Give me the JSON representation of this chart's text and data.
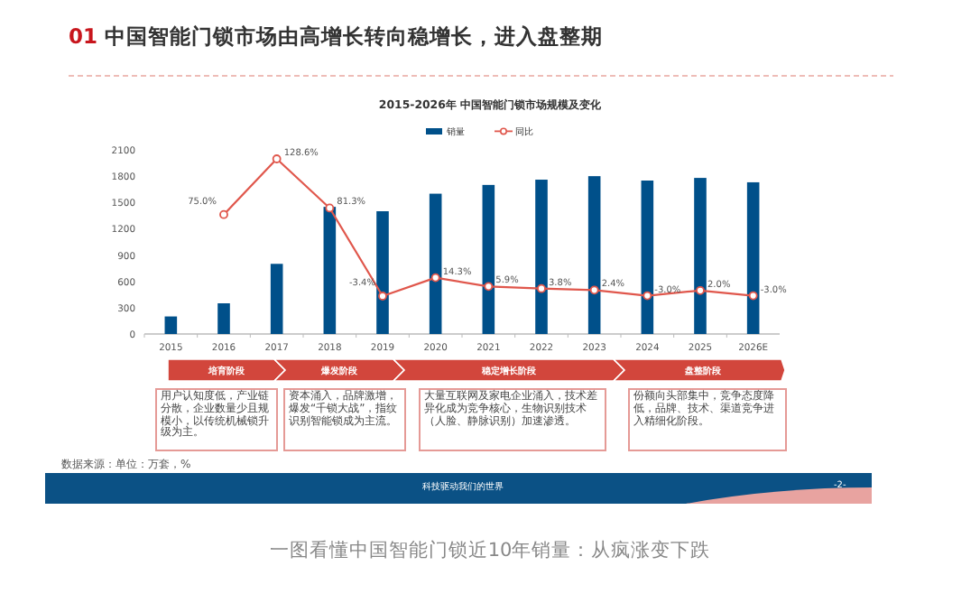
{
  "chart_data": {
    "type": "bar",
    "title": "2015-2026年 中国智能门锁市场规模及变化",
    "categories": [
      "2015",
      "2016",
      "2017",
      "2018",
      "2019",
      "2020",
      "2021",
      "2022",
      "2023",
      "2024",
      "2025",
      "2026E"
    ],
    "series": [
      {
        "name": "销量",
        "color": "#00508a",
        "values": [
          200,
          350,
          800,
          1450,
          1400,
          1600,
          1700,
          1760,
          1800,
          1750,
          1780,
          1730
        ]
      },
      {
        "name": "同比",
        "type": "line",
        "axis": "y2",
        "color": "#e0574c",
        "marker": "circle",
        "values": [
          null,
          75.0,
          128.6,
          81.3,
          -3.4,
          14.3,
          5.9,
          3.8,
          2.4,
          -3.0,
          2.0,
          -3.0
        ],
        "value_labels": [
          null,
          "75.0%",
          "128.6%",
          "81.3%",
          "-3.4%",
          "14.3%",
          "5.9%",
          "3.8%",
          "2.4%",
          "-3.0%",
          "2.0%",
          "-3.0%"
        ]
      }
    ],
    "ylim": [
      0,
      2100
    ],
    "yticks": [
      0,
      300,
      600,
      900,
      1200,
      1500,
      1800,
      2100
    ],
    "legend": "top",
    "grid": false,
    "annotations": [
      "01 中国智能门锁市场由高增长转向稳增长，进入盘整期",
      "培育阶段",
      "爆发阶段",
      "稳定增长阶段",
      "盘整阶段",
      "用户认知度低，产业链分散，企业数量少且规模小，以传统机械锁升级为主。",
      "资本涌入，品牌激增，爆发“千锁大战”，指纹识别智能锁成为主流。",
      "大量互联网及家电企业涌入，技术差异化成为竞争核心，生物识别技术（人脸、静脉识别）加速渗透。",
      "份额向头部集中，竞争态度降低，品牌、技术、渠道竞争进入精细化阶段。",
      "数据来源：单位：万套，%",
      "科技驱动我们的世界",
      "-2-",
      "一图看懂中国智能门锁近10年销量：从疯涨变下跌"
    ]
  }
}
